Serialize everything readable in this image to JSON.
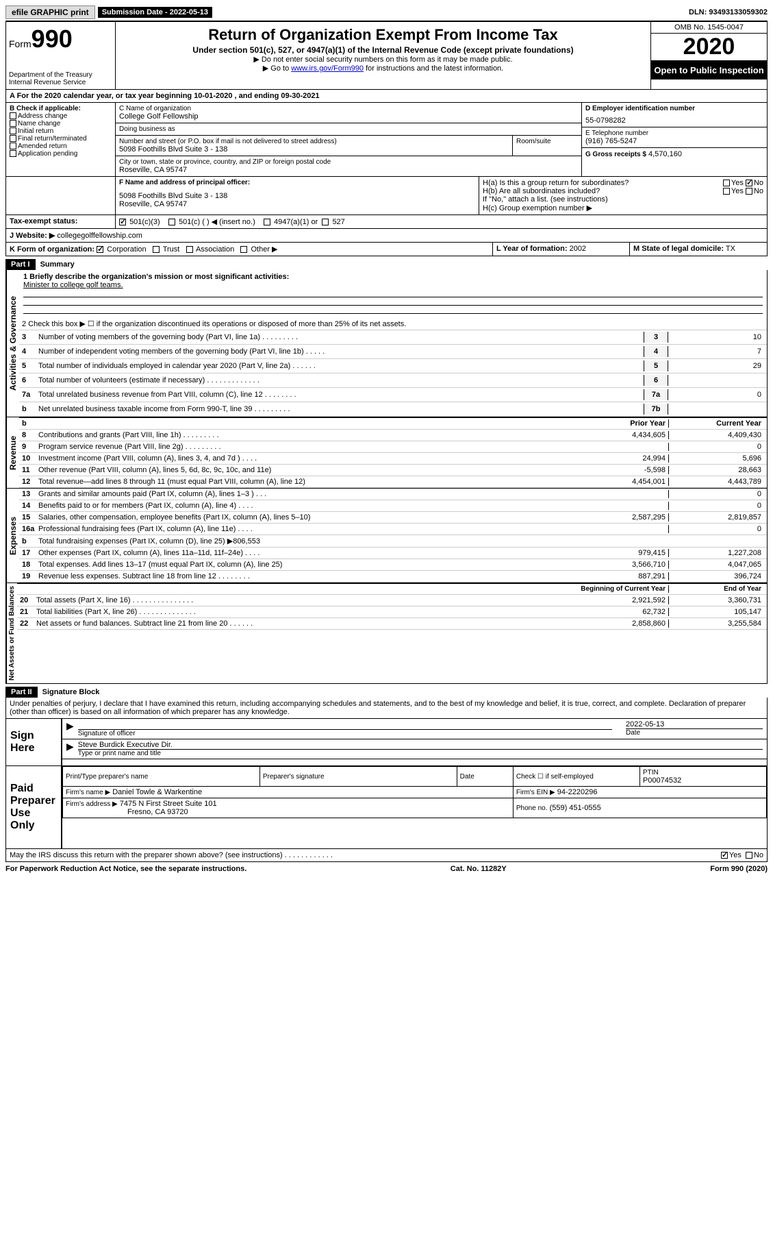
{
  "topbar": {
    "efile": "efile GRAPHIC print",
    "subdate_label": "Submission Date - 2022-05-13",
    "dln": "DLN: 93493133059302"
  },
  "header": {
    "form_prefix": "Form",
    "form_number": "990",
    "dept": "Department of the Treasury",
    "irs": "Internal Revenue Service",
    "title": "Return of Organization Exempt From Income Tax",
    "subtitle": "Under section 501(c), 527, or 4947(a)(1) of the Internal Revenue Code (except private foundations)",
    "note1": "▶ Do not enter social security numbers on this form as it may be made public.",
    "note2_pre": "▶ Go to ",
    "note2_link": "www.irs.gov/Form990",
    "note2_post": " for instructions and the latest information.",
    "omb": "OMB No. 1545-0047",
    "year": "2020",
    "inspection": "Open to Public Inspection"
  },
  "secA": {
    "text": "A For the 2020 calendar year, or tax year beginning 10-01-2020    , and ending 09-30-2021"
  },
  "secB": {
    "label": "B Check if applicable:",
    "opts": [
      "Address change",
      "Name change",
      "Initial return",
      "Final return/terminated",
      "Amended return",
      "Application pending"
    ]
  },
  "secC": {
    "name_label": "C Name of organization",
    "name": "College Golf Fellowship",
    "dba_label": "Doing business as",
    "dba": "",
    "street_label": "Number and street (or P.O. box if mail is not delivered to street address)",
    "room_label": "Room/suite",
    "street": "5098 Foothills Blvd Suite 3 - 138",
    "city_label": "City or town, state or province, country, and ZIP or foreign postal code",
    "city": "Roseville, CA  95747"
  },
  "secD": {
    "label": "D Employer identification number",
    "value": "55-0798282"
  },
  "secE": {
    "label": "E Telephone number",
    "value": "(916) 765-5247"
  },
  "secG": {
    "label": "G Gross receipts $",
    "value": "4,570,160"
  },
  "secF": {
    "label": "F  Name and address of principal officer:",
    "addr1": "5098 Foothills Blvd Suite 3 - 138",
    "addr2": "Roseville, CA   95747"
  },
  "secH": {
    "a_label": "H(a)  Is this a group return for subordinates?",
    "b_label": "H(b)  Are all subordinates included?",
    "b_note": "If \"No,\" attach a list. (see instructions)",
    "c_label": "H(c)  Group exemption number ▶"
  },
  "taxExempt": {
    "label": "Tax-exempt status:",
    "opt1": "501(c)(3)",
    "opt2": "501(c) (   ) ◀ (insert no.)",
    "opt3": "4947(a)(1) or",
    "opt4": "527"
  },
  "secJ": {
    "label": "J     Website: ▶",
    "value": "collegegolffellowship.com"
  },
  "secK": {
    "label": "K Form of organization:",
    "opts": [
      "Corporation",
      "Trust",
      "Association",
      "Other ▶"
    ]
  },
  "secL": {
    "label": "L Year of formation:",
    "value": "2002"
  },
  "secM": {
    "label": "M State of legal domicile:",
    "value": "TX"
  },
  "part1": {
    "header": "Part I",
    "title": "Summary",
    "vert1": "Activities & Governance",
    "line1_label": "1   Briefly describe the organization's mission or most significant activities:",
    "mission": "Minister to college golf teams.",
    "line2": "2    Check this box ▶ ☐  if the organization discontinued its operations or disposed of more than 25% of its net assets.",
    "lines_ag": [
      {
        "n": "3",
        "t": "Number of voting members of the governing body (Part VI, line 1a)   .    .    .    .    .    .    .    .    .",
        "nc": "3",
        "v": "10"
      },
      {
        "n": "4",
        "t": "Number of independent voting members of the governing body (Part VI, line 1b)   .    .    .    .    .",
        "nc": "4",
        "v": "7"
      },
      {
        "n": "5",
        "t": "Total number of individuals employed in calendar year 2020 (Part V, line 2a)   .    .    .    .    .    .",
        "nc": "5",
        "v": "29"
      },
      {
        "n": "6",
        "t": "Total number of volunteers (estimate if necessary)   .    .    .    .    .    .    .    .    .    .    .    .    .",
        "nc": "6",
        "v": ""
      },
      {
        "n": "7a",
        "t": "Total unrelated business revenue from Part VIII, column (C), line 12   .    .    .    .    .    .    .    .",
        "nc": "7a",
        "v": "0"
      },
      {
        "n": "b",
        "t": "Net unrelated business taxable income from Form 990-T, line 39   .    .    .    .    .    .    .    .    .",
        "nc": "7b",
        "v": ""
      }
    ],
    "vert2": "Revenue",
    "col_prior": "Prior Year",
    "col_current": "Current Year",
    "lines_rev": [
      {
        "n": "8",
        "t": "Contributions and grants (Part VIII, line 1h)   .    .    .    .    .    .    .    .    .",
        "p": "4,434,605",
        "c": "4,409,430"
      },
      {
        "n": "9",
        "t": "Program service revenue (Part VIII, line 2g)   .    .    .    .    .    .    .    .    .",
        "p": "",
        "c": "0"
      },
      {
        "n": "10",
        "t": "Investment income (Part VIII, column (A), lines 3, 4, and 7d )   .    .    .    .",
        "p": "24,994",
        "c": "5,696"
      },
      {
        "n": "11",
        "t": "Other revenue (Part VIII, column (A), lines 5, 6d, 8c, 9c, 10c, and 11e)",
        "p": "-5,598",
        "c": "28,663"
      },
      {
        "n": "12",
        "t": "Total revenue—add lines 8 through 11 (must equal Part VIII, column (A), line 12)",
        "p": "4,454,001",
        "c": "4,443,789"
      }
    ],
    "vert3": "Expenses",
    "lines_exp": [
      {
        "n": "13",
        "t": "Grants and similar amounts paid (Part IX, column (A), lines 1–3 )   .    .    .",
        "p": "",
        "c": "0"
      },
      {
        "n": "14",
        "t": "Benefits paid to or for members (Part IX, column (A), line 4)   .    .    .    .",
        "p": "",
        "c": "0"
      },
      {
        "n": "15",
        "t": "Salaries, other compensation, employee benefits (Part IX, column (A), lines 5–10)",
        "p": "2,587,295",
        "c": "2,819,857"
      },
      {
        "n": "16a",
        "t": "Professional fundraising fees (Part IX, column (A), line 11e)   .    .    .    .",
        "p": "",
        "c": "0"
      },
      {
        "n": "b",
        "t": "Total fundraising expenses (Part IX, column (D), line 25) ▶806,553",
        "p": "—shade—",
        "c": "—shade—"
      },
      {
        "n": "17",
        "t": "Other expenses (Part IX, column (A), lines 11a–11d, 11f–24e)   .    .    .    .",
        "p": "979,415",
        "c": "1,227,208"
      },
      {
        "n": "18",
        "t": "Total expenses. Add lines 13–17 (must equal Part IX, column (A), line 25)",
        "p": "3,566,710",
        "c": "4,047,065"
      },
      {
        "n": "19",
        "t": "Revenue less expenses. Subtract line 18 from line 12   .    .    .    .    .    .    .    .",
        "p": "887,291",
        "c": "396,724"
      }
    ],
    "vert4": "Net Assets or Fund Balances",
    "col_boy": "Beginning of Current Year",
    "col_eoy": "End of Year",
    "lines_na": [
      {
        "n": "20",
        "t": "Total assets (Part X, line 16)   .    .    .    .    .    .    .    .    .    .    .    .    .    .    .",
        "p": "2,921,592",
        "c": "3,360,731"
      },
      {
        "n": "21",
        "t": "Total liabilities (Part X, line 26)   .    .    .    .    .    .    .    .    .    .    .    .    .    .",
        "p": "62,732",
        "c": "105,147"
      },
      {
        "n": "22",
        "t": "Net assets or fund balances. Subtract line 21 from line 20   .    .    .    .    .    .",
        "p": "2,858,860",
        "c": "3,255,584"
      }
    ]
  },
  "part2": {
    "header": "Part II",
    "title": "Signature Block",
    "perjury": "Under penalties of perjury, I declare that I have examined this return, including accompanying schedules and statements, and to the best of my knowledge and belief, it is true, correct, and complete. Declaration of preparer (other than officer) is based on all information of which preparer has any knowledge.",
    "sign_here": "Sign Here",
    "sig_officer": "Signature of officer",
    "sig_date": "2022-05-13",
    "date_label": "Date",
    "officer_name": "Steve Burdick  Executive Dir.",
    "type_label": "Type or print name and title",
    "paid": "Paid Preparer Use Only",
    "prep_name_label": "Print/Type preparer's name",
    "prep_sig_label": "Preparer's signature",
    "prep_date_label": "Date",
    "self_emp": "Check ☐ if self-employed",
    "ptin_label": "PTIN",
    "ptin": "P00074532",
    "firm_name_label": "Firm's name      ▶",
    "firm_name": "Daniel Towle & Warkentine",
    "firm_ein_label": "Firm's EIN ▶",
    "firm_ein": "94-2220296",
    "firm_addr_label": "Firm's address ▶",
    "firm_addr1": "7475 N First Street Suite 101",
    "firm_addr2": "Fresno, CA   93720",
    "phone_label": "Phone no.",
    "phone": "(559) 451-0555",
    "discuss": "May the IRS discuss this return with the preparer shown above? (see instructions)   .    .    .    .    .    .    .    .    .    .    .    ."
  },
  "footer": {
    "pra": "For Paperwork Reduction Act Notice, see the separate instructions.",
    "cat": "Cat. No. 11282Y",
    "form": "Form 990 (2020)"
  }
}
